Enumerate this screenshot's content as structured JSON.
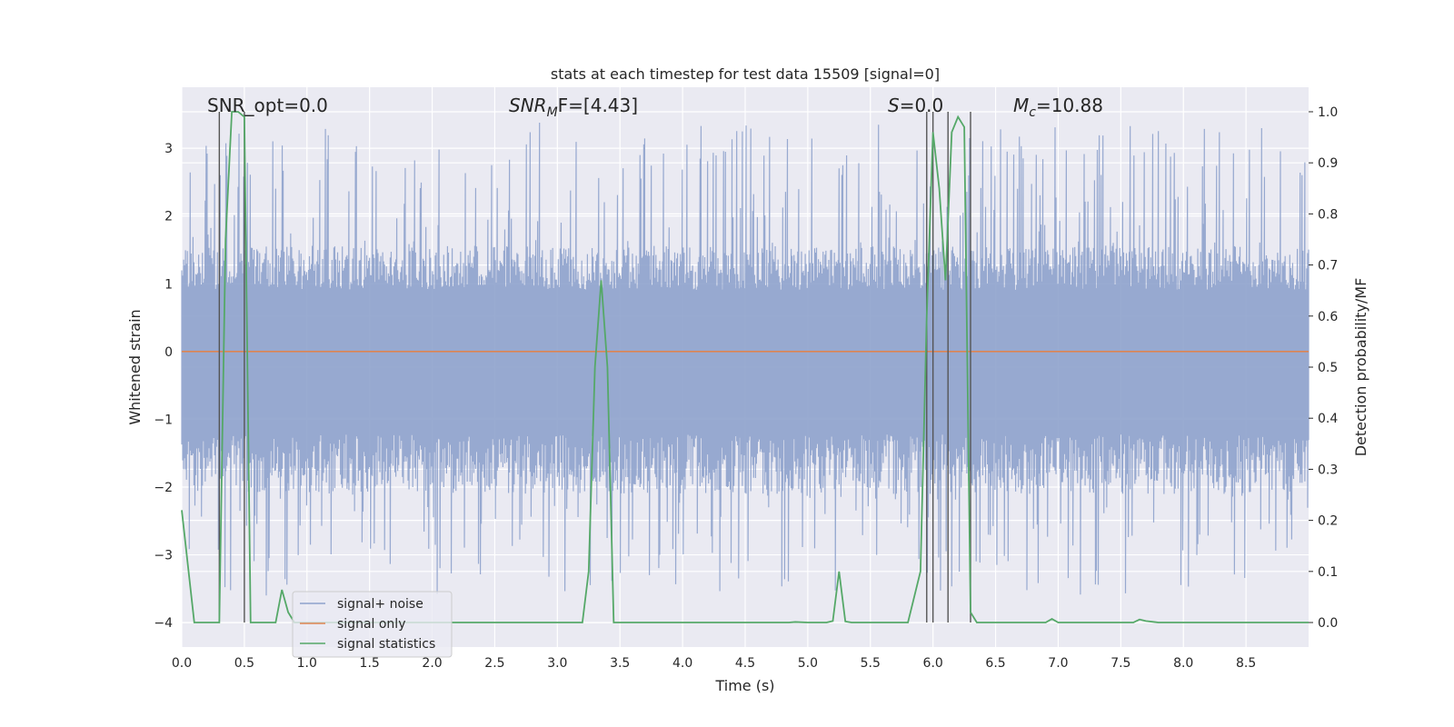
{
  "chart_data": {
    "type": "line",
    "title": "stats at each timestep for test data 15509 [signal=0]",
    "xlabel": "Time (s)",
    "ylabel_left": "Whitened strain",
    "ylabel_right": "Detection probability/MF",
    "xlim": [
      0.0,
      9.0
    ],
    "ylim_left": [
      -4.36,
      3.9
    ],
    "ylim_right": [
      -0.048,
      1.048
    ],
    "x_ticks": [
      "0.0",
      "0.5",
      "1.0",
      "1.5",
      "2.0",
      "2.5",
      "3.0",
      "3.5",
      "4.0",
      "4.5",
      "5.0",
      "5.5",
      "6.0",
      "6.5",
      "7.0",
      "7.5",
      "8.0",
      "8.5"
    ],
    "y_left_ticks": [
      "−4",
      "−3",
      "−2",
      "−1",
      "0",
      "1",
      "2",
      "3"
    ],
    "y_right_ticks": [
      "0.0",
      "0.1",
      "0.2",
      "0.3",
      "0.4",
      "0.5",
      "0.6",
      "0.7",
      "0.8",
      "0.9",
      "1.0"
    ],
    "grid": true,
    "legend_position": "lower-left",
    "annotations": {
      "snr_opt": "SNR_opt=0.0",
      "snr_mf_symbol": "SNR",
      "snr_mf_sub": "M",
      "snr_mf_rest": "F=[4.43]",
      "s_symbol": "S",
      "s_rest": "=0.0",
      "mc_symbol": "M",
      "mc_sub": "c",
      "mc_rest": "=10.88"
    },
    "series": [
      {
        "name": "signal+ noise",
        "color": "#8ea2cc",
        "description_values": {
          "dense_band_range": [
            -1.75,
            1.3
          ],
          "spike_range": [
            -3.6,
            3.4
          ]
        }
      },
      {
        "name": "signal only",
        "color": "#dd8452",
        "x": [
          0.0,
          9.0
        ],
        "y": [
          0.0,
          0.0
        ]
      },
      {
        "name": "signal statistics",
        "color": "#55a868",
        "x": [
          0.0,
          0.05,
          0.1,
          0.15,
          0.2,
          0.25,
          0.3,
          0.35,
          0.4,
          0.45,
          0.5,
          0.55,
          0.6,
          0.65,
          0.7,
          0.75,
          0.8,
          0.85,
          0.9,
          0.95,
          1.0,
          1.5,
          2.0,
          2.5,
          3.0,
          3.2,
          3.25,
          3.3,
          3.35,
          3.4,
          3.45,
          3.5,
          3.55,
          4.0,
          4.5,
          4.8,
          4.85,
          4.9,
          5.0,
          5.15,
          5.2,
          5.25,
          5.3,
          5.35,
          5.5,
          5.8,
          5.9,
          5.95,
          6.0,
          6.05,
          6.1,
          6.15,
          6.2,
          6.25,
          6.3,
          6.35,
          6.4,
          6.45,
          6.8,
          6.9,
          6.95,
          7.0,
          7.05,
          7.5,
          7.6,
          7.65,
          7.7,
          7.8,
          7.9,
          8.0,
          8.5,
          9.0
        ],
        "y": [
          0.22,
          0.11,
          0.0,
          0.0,
          0.0,
          0.0,
          0.0,
          0.75,
          1.0,
          1.0,
          0.99,
          0.0,
          0.0,
          0.0,
          0.0,
          0.0,
          0.064,
          0.02,
          0.0,
          0.0,
          0.0,
          0.0,
          0.0,
          0.0,
          0.0,
          0.0,
          0.1,
          0.5,
          0.67,
          0.5,
          0.0,
          0.0,
          0.0,
          0.0,
          0.0,
          0.0,
          0.0,
          0.001,
          0.0,
          0.0,
          0.003,
          0.1,
          0.002,
          0.0,
          0.0,
          0.0,
          0.1,
          0.6,
          0.96,
          0.85,
          0.67,
          0.96,
          0.99,
          0.97,
          0.02,
          0.0,
          0.0,
          0.0,
          0.0,
          0.0,
          0.007,
          0.0,
          0.0,
          0.0,
          0.0,
          0.006,
          0.003,
          0.0,
          0.0,
          0.0,
          0.0,
          0.0
        ]
      }
    ],
    "vertical_markers_x": [
      0.3,
      0.5,
      5.95,
      6.0,
      6.12,
      6.3
    ]
  }
}
